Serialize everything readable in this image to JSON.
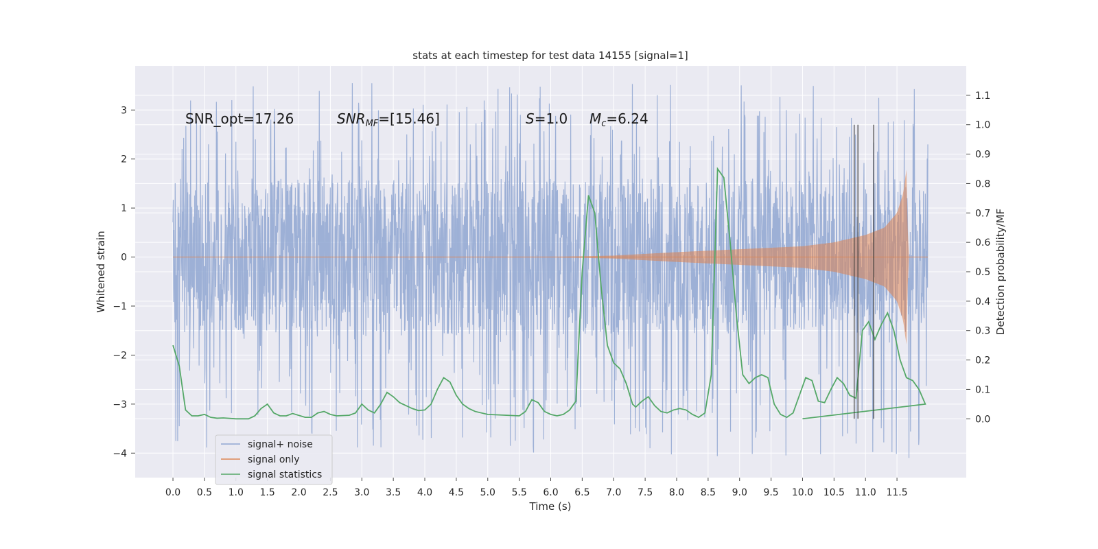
{
  "chart_data": {
    "type": "line",
    "title": "stats at each timestep for test data 14155 [signal=1]",
    "xlabel": "Time (s)",
    "ylabel": "Whitened strain",
    "ylabel_right": "Detection probability/MF",
    "xlim": [
      -0.6,
      12.6
    ],
    "xticks": [
      0.0,
      0.5,
      1.0,
      1.5,
      2.0,
      2.5,
      3.0,
      3.5,
      4.0,
      4.5,
      5.0,
      5.5,
      6.0,
      6.5,
      7.0,
      7.5,
      8.0,
      8.5,
      9.0,
      9.5,
      10.0,
      10.5,
      11.0,
      11.5
    ],
    "xtick_labels": [
      "0.0",
      "0.5",
      "1.0",
      "1.5",
      "2.0",
      "2.5",
      "3.0",
      "3.5",
      "4.0",
      "4.5",
      "5.0",
      "5.5",
      "6.0",
      "6.5",
      "7.0",
      "7.5",
      "8.0",
      "8.5",
      "9.0",
      "9.5",
      "10.0",
      "10.5",
      "11.0",
      "11.5"
    ],
    "ylim": [
      -4.5,
      3.9
    ],
    "yticks": [
      -4,
      -3,
      -2,
      -1,
      0,
      1,
      2,
      3
    ],
    "ytick_labels": [
      "−4",
      "−3",
      "−2",
      "−1",
      "0",
      "1",
      "2",
      "3"
    ],
    "ylim_right": [
      -0.2,
      1.2
    ],
    "yticks_right": [
      0.0,
      0.1,
      0.2,
      0.3,
      0.4,
      0.5,
      0.6,
      0.7,
      0.8,
      0.9,
      1.0,
      1.1
    ],
    "ytick_labels_right": [
      "0.0",
      "0.1",
      "0.2",
      "0.3",
      "0.4",
      "0.5",
      "0.6",
      "0.7",
      "0.8",
      "0.9",
      "1.0",
      "1.1"
    ],
    "grid": true,
    "legend_position": "lower-left",
    "annotations": {
      "snr_opt": "SNR_opt=17.26",
      "snr_mf_main": "SNR",
      "snr_mf_sub": "MF",
      "snr_mf_rest": "=[15.46]",
      "s_main": "S",
      "s_rest": "=1.0",
      "mc_main": "M",
      "mc_sub": "c",
      "mc_rest": "=6.24"
    },
    "vertical_lines_x": [
      10.82,
      10.88,
      11.13
    ],
    "series": [
      {
        "name": "signal+ noise",
        "color": "#8fa6d1",
        "t_range": [
          0.0,
          11.99
        ],
        "typical_envelope": [
          -1.6,
          1.6
        ],
        "peak_max": 3.55,
        "peak_min": -4.1
      },
      {
        "name": "signal only",
        "color": "#dd8452",
        "t_range": [
          0.0,
          11.99
        ],
        "envelope_points": [
          [
            0.0,
            0.0
          ],
          [
            6.0,
            0.003
          ],
          [
            7.0,
            0.03
          ],
          [
            8.0,
            0.1
          ],
          [
            9.0,
            0.16
          ],
          [
            10.0,
            0.22
          ],
          [
            10.5,
            0.3
          ],
          [
            11.0,
            0.45
          ],
          [
            11.3,
            0.6
          ],
          [
            11.5,
            0.9
          ],
          [
            11.6,
            1.3
          ],
          [
            11.65,
            1.8
          ],
          [
            11.68,
            0.0
          ],
          [
            11.99,
            0.0
          ]
        ]
      },
      {
        "name": "signal statistics",
        "color": "#55a868",
        "points": [
          [
            0.0,
            0.25
          ],
          [
            0.1,
            0.18
          ],
          [
            0.2,
            0.03
          ],
          [
            0.3,
            0.01
          ],
          [
            0.4,
            0.01
          ],
          [
            0.5,
            0.015
          ],
          [
            0.6,
            0.005
          ],
          [
            0.7,
            0.002
          ],
          [
            0.8,
            0.003
          ],
          [
            1.0,
            0.0
          ],
          [
            1.2,
            0.0
          ],
          [
            1.3,
            0.01
          ],
          [
            1.4,
            0.035
          ],
          [
            1.5,
            0.05
          ],
          [
            1.6,
            0.02
          ],
          [
            1.7,
            0.01
          ],
          [
            1.8,
            0.01
          ],
          [
            1.9,
            0.018
          ],
          [
            2.1,
            0.005
          ],
          [
            2.2,
            0.005
          ],
          [
            2.3,
            0.02
          ],
          [
            2.4,
            0.025
          ],
          [
            2.5,
            0.015
          ],
          [
            2.6,
            0.01
          ],
          [
            2.8,
            0.012
          ],
          [
            2.9,
            0.02
          ],
          [
            3.0,
            0.05
          ],
          [
            3.1,
            0.03
          ],
          [
            3.2,
            0.02
          ],
          [
            3.3,
            0.05
          ],
          [
            3.4,
            0.09
          ],
          [
            3.5,
            0.075
          ],
          [
            3.6,
            0.055
          ],
          [
            3.8,
            0.035
          ],
          [
            3.9,
            0.028
          ],
          [
            4.0,
            0.03
          ],
          [
            4.1,
            0.05
          ],
          [
            4.2,
            0.1
          ],
          [
            4.3,
            0.14
          ],
          [
            4.4,
            0.125
          ],
          [
            4.5,
            0.08
          ],
          [
            4.6,
            0.05
          ],
          [
            4.7,
            0.035
          ],
          [
            4.8,
            0.025
          ],
          [
            5.0,
            0.015
          ],
          [
            5.3,
            0.012
          ],
          [
            5.5,
            0.01
          ],
          [
            5.6,
            0.025
          ],
          [
            5.7,
            0.065
          ],
          [
            5.8,
            0.055
          ],
          [
            5.9,
            0.025
          ],
          [
            6.0,
            0.015
          ],
          [
            6.1,
            0.01
          ],
          [
            6.2,
            0.015
          ],
          [
            6.3,
            0.03
          ],
          [
            6.4,
            0.06
          ],
          [
            6.5,
            0.5
          ],
          [
            6.6,
            0.76
          ],
          [
            6.7,
            0.7
          ],
          [
            6.8,
            0.45
          ],
          [
            6.9,
            0.25
          ],
          [
            7.0,
            0.19
          ],
          [
            7.1,
            0.17
          ],
          [
            7.2,
            0.12
          ],
          [
            7.3,
            0.05
          ],
          [
            7.35,
            0.04
          ],
          [
            7.45,
            0.06
          ],
          [
            7.55,
            0.075
          ],
          [
            7.65,
            0.045
          ],
          [
            7.75,
            0.025
          ],
          [
            7.85,
            0.02
          ],
          [
            7.95,
            0.03
          ],
          [
            8.05,
            0.035
          ],
          [
            8.15,
            0.03
          ],
          [
            8.25,
            0.015
          ],
          [
            8.35,
            0.005
          ],
          [
            8.45,
            0.02
          ],
          [
            8.55,
            0.15
          ],
          [
            8.65,
            0.85
          ],
          [
            8.75,
            0.82
          ],
          [
            8.85,
            0.6
          ],
          [
            8.95,
            0.35
          ],
          [
            9.05,
            0.15
          ],
          [
            9.15,
            0.12
          ],
          [
            9.25,
            0.14
          ],
          [
            9.35,
            0.15
          ],
          [
            9.45,
            0.14
          ],
          [
            9.55,
            0.05
          ],
          [
            9.65,
            0.015
          ],
          [
            9.75,
            0.005
          ],
          [
            9.85,
            0.02
          ],
          [
            9.95,
            0.08
          ],
          [
            10.05,
            0.14
          ],
          [
            10.15,
            0.13
          ],
          [
            10.25,
            0.06
          ],
          [
            10.35,
            0.055
          ],
          [
            10.45,
            0.1
          ],
          [
            10.55,
            0.14
          ],
          [
            10.65,
            0.12
          ],
          [
            10.75,
            0.08
          ],
          [
            10.85,
            0.07
          ],
          [
            10.95,
            0.3
          ],
          [
            11.05,
            0.33
          ],
          [
            11.15,
            0.27
          ],
          [
            11.25,
            0.32
          ],
          [
            11.35,
            0.36
          ],
          [
            11.45,
            0.3
          ],
          [
            11.55,
            0.2
          ],
          [
            11.65,
            0.14
          ],
          [
            11.75,
            0.13
          ],
          [
            11.85,
            0.1
          ],
          [
            11.95,
            0.05
          ],
          [
            10.0,
            0.0
          ]
        ]
      }
    ]
  }
}
